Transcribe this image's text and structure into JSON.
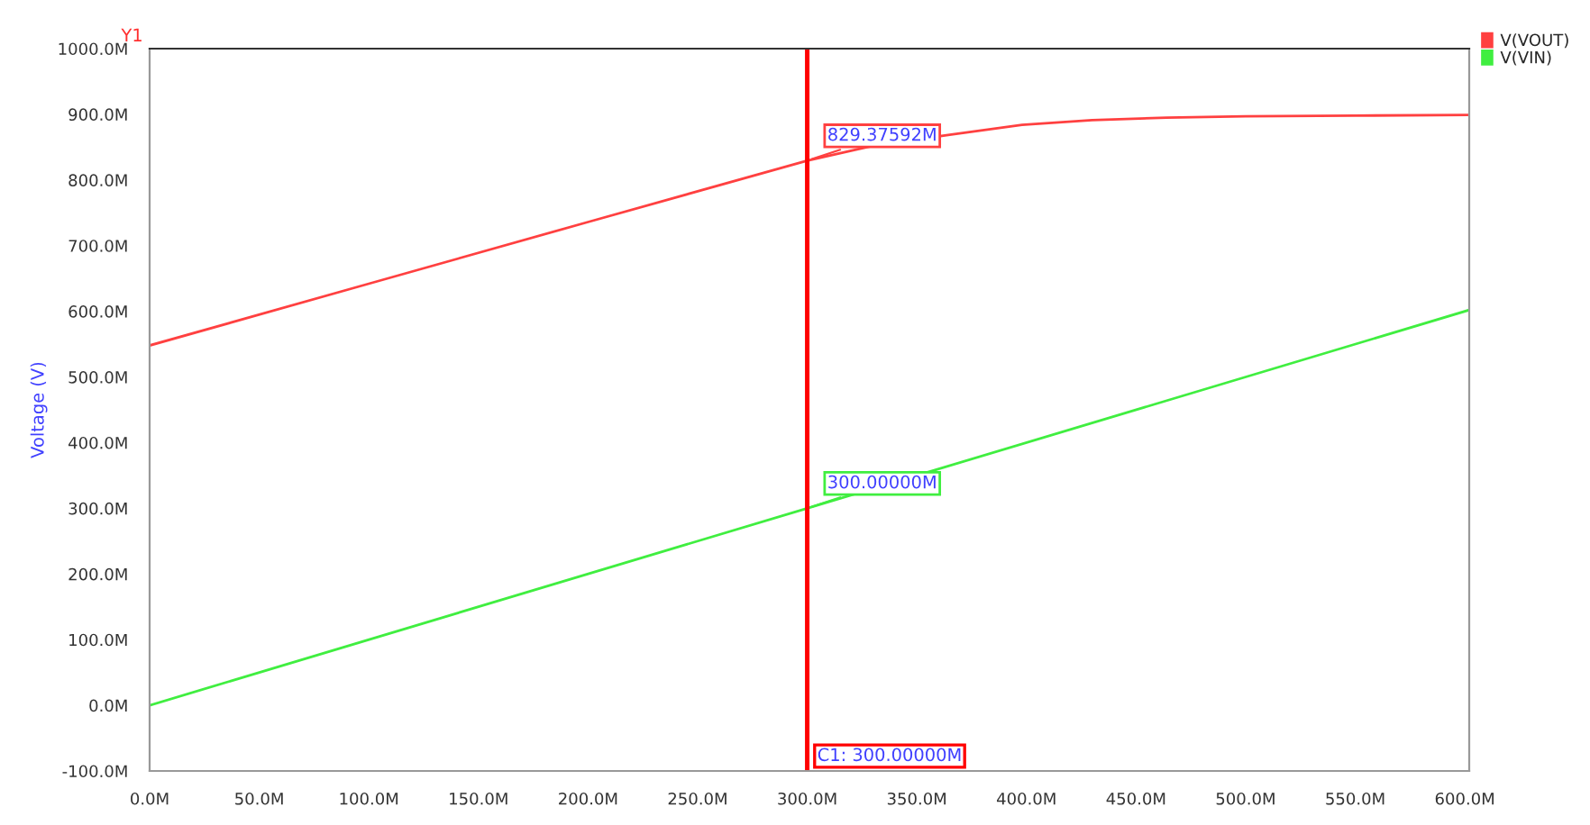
{
  "chart_data": {
    "type": "line",
    "ylabel": "Voltage (V)",
    "series": [
      {
        "name": "V(VOUT)",
        "color": "#ff4040",
        "x": [
          0,
          100,
          200,
          300,
          330,
          365,
          398,
          430,
          464,
          500,
          550,
          602
        ],
        "values": [
          548,
          642,
          736,
          829.4,
          852,
          869,
          884,
          891,
          895,
          897,
          898,
          899
        ]
      },
      {
        "name": "V(VIN)",
        "color": "#40ee40",
        "x": [
          0,
          300,
          602
        ],
        "values": [
          0,
          300,
          602
        ]
      }
    ],
    "xlim": [
      0,
      602
    ],
    "ylim": [
      -100,
      1000
    ],
    "xticks": [
      {
        "value": 0,
        "label": "0.0M"
      },
      {
        "value": 50,
        "label": "50.0M"
      },
      {
        "value": 100,
        "label": "100.0M"
      },
      {
        "value": 150,
        "label": "150.0M"
      },
      {
        "value": 200,
        "label": "200.0M"
      },
      {
        "value": 250,
        "label": "250.0M"
      },
      {
        "value": 300,
        "label": "300.0M"
      },
      {
        "value": 350,
        "label": "350.0M"
      },
      {
        "value": 400,
        "label": "400.0M"
      },
      {
        "value": 450,
        "label": "450.0M"
      },
      {
        "value": 500,
        "label": "500.0M"
      },
      {
        "value": 550,
        "label": "550.0M"
      },
      {
        "value": 600,
        "label": "600.0M"
      }
    ],
    "yticks": [
      {
        "value": -100,
        "label": "-100.0M"
      },
      {
        "value": 0,
        "label": "0.0M"
      },
      {
        "value": 100,
        "label": "100.0M"
      },
      {
        "value": 200,
        "label": "200.0M"
      },
      {
        "value": 300,
        "label": "300.0M"
      },
      {
        "value": 400,
        "label": "400.0M"
      },
      {
        "value": 500,
        "label": "500.0M"
      },
      {
        "value": 600,
        "label": "600.0M"
      },
      {
        "value": 700,
        "label": "700.0M"
      },
      {
        "value": 800,
        "label": "800.0M"
      },
      {
        "value": 900,
        "label": "900.0M"
      },
      {
        "value": 1000,
        "label": "1000.0M"
      }
    ],
    "ref_lines": [
      {
        "axis": "x",
        "value": 300,
        "label": "C1: 300.00000M",
        "color": "#ff0000"
      }
    ],
    "annotations": [
      "Y1",
      {
        "text": "829.37592M",
        "x": 300,
        "y": 829.37592
      },
      {
        "text": "300.00000M",
        "x": 300,
        "y": 300
      }
    ],
    "grid": false,
    "legend": "top right",
    "marker": "none",
    "line_style": "solid"
  }
}
